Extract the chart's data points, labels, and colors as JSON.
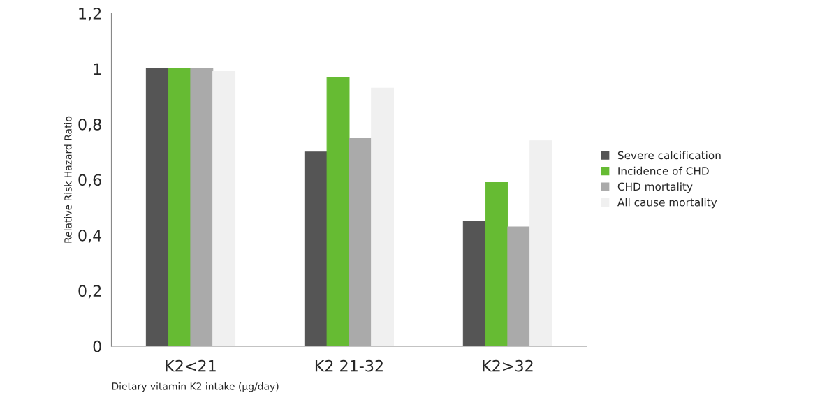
{
  "chart_data": {
    "type": "bar",
    "xlabel": "Dietary vitamin K2 intake (µg/day)",
    "ylabel": "Relative Risk Hazard Ratio",
    "categories": [
      "K2<21",
      "K2 21-32",
      "K2>32"
    ],
    "series": [
      {
        "name": "Severe calcification",
        "color": "#555555",
        "values": [
          1.0,
          0.7,
          0.45
        ]
      },
      {
        "name": "Incidence of CHD",
        "color": "#66bb33",
        "values": [
          1.0,
          0.97,
          0.59
        ]
      },
      {
        "name": "CHD mortality",
        "color": "#aaaaaa",
        "values": [
          1.0,
          0.75,
          0.43
        ]
      },
      {
        "name": "All cause mortality",
        "color": "#f0f0f0",
        "values": [
          0.99,
          0.93,
          0.74
        ]
      }
    ],
    "ylim": [
      0,
      1.2
    ],
    "yticks": [
      {
        "value": 0,
        "label": "0"
      },
      {
        "value": 0.2,
        "label": "0,2"
      },
      {
        "value": 0.4,
        "label": "0,4"
      },
      {
        "value": 0.6,
        "label": "0,6"
      },
      {
        "value": 0.8,
        "label": "0,8"
      },
      {
        "value": 1,
        "label": "1"
      },
      {
        "value": 1.2,
        "label": "1,2"
      }
    ],
    "grid": false,
    "legend": "right"
  }
}
